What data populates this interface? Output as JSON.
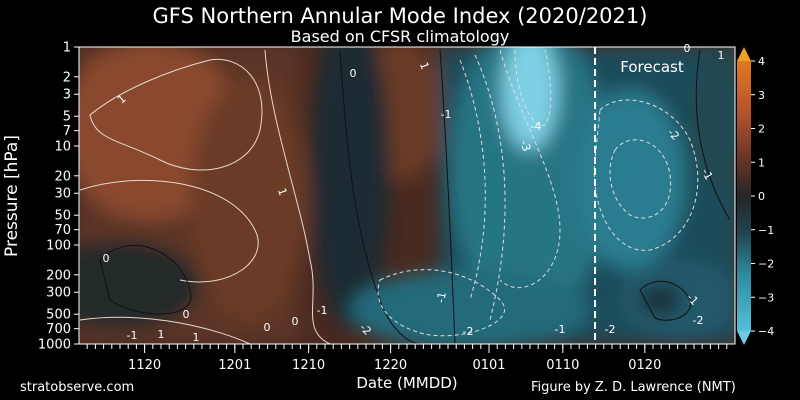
{
  "header": {
    "title": "GFS Northern Annular Mode Index (2020/2021)",
    "subtitle": "Based on CFSR climatology"
  },
  "footer": {
    "left": "stratobserve.com",
    "right": "Figure by Z. D. Lawrence (NMT)"
  },
  "chart_data": {
    "type": "heatmap",
    "title": "GFS Northern Annular Mode Index (2020/2021)",
    "subtitle": "Based on CFSR climatology",
    "xlabel": "Date (MMDD)",
    "ylabel": "Pressure [hPa]",
    "x_ticks": [
      "1120",
      "1201",
      "1210",
      "1220",
      "0101",
      "0110",
      "0120"
    ],
    "y_ticks": [
      "1",
      "2",
      "3",
      "5",
      "7",
      "10",
      "20",
      "30",
      "50",
      "70",
      "100",
      "200",
      "300",
      "500",
      "700",
      "1000"
    ],
    "y_scale": "log",
    "y_inverted": true,
    "colorbar_ticks": [
      "4",
      "3",
      "2",
      "1",
      "0",
      "−1",
      "−2",
      "−3",
      "−4"
    ],
    "colorbar_range": [
      -4,
      4
    ],
    "forecast_label": "Forecast",
    "contour_labels": [
      "1",
      "0",
      "1",
      "0",
      "0",
      "1",
      "0",
      "0",
      "-1",
      "-2",
      "-1",
      "-2",
      "-1",
      "-4",
      "-3",
      "-2",
      "-1",
      "-2",
      "-1",
      "-1",
      "-1",
      "1",
      "-2",
      "0",
      "1",
      "1"
    ]
  }
}
